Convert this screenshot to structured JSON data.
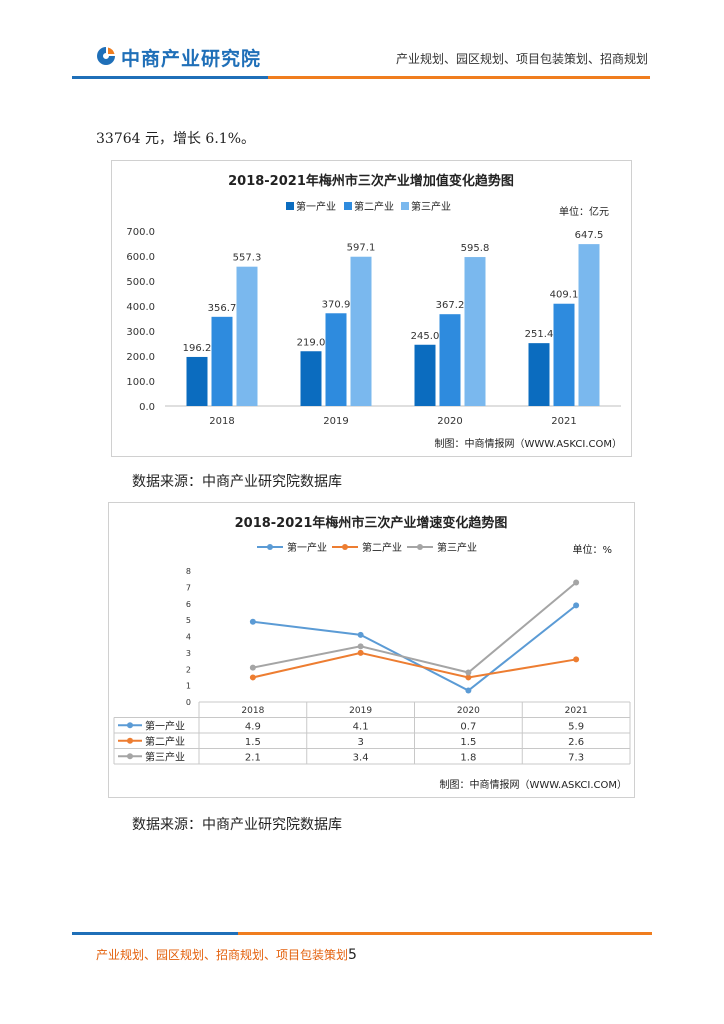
{
  "header": {
    "logo_text": "中商产业研究院",
    "tagline": "产业规划、园区规划、项目包装策划、招商规划"
  },
  "body": {
    "intro_text": "33764 元，增长 6.1%。",
    "source_1": "数据来源：中商产业研究院数据库",
    "source_2": "数据来源：中商产业研究院数据库"
  },
  "footer": {
    "text": "产业规划、园区规划、招商规划、项目包装策划",
    "page_number": "5"
  },
  "colors": {
    "brand_blue": "#1f6fb8",
    "brand_orange": "#f07d1e",
    "primary_series": "#0b6cbf",
    "secondary_series": "#2e8bde",
    "tertiary_series": "#7ab8ee",
    "line_primary": "#5b9bd5",
    "line_secondary": "#ed7d31",
    "line_tertiary": "#a5a5a5"
  },
  "chart_data": [
    {
      "type": "bar",
      "title": "2018-2021年梅州市三次产业增加值变化趋势图",
      "unit_label": "单位：亿元",
      "credit": "制图：中商情报网（WWW.ASKCI.COM）",
      "legend_position": "top",
      "categories": [
        "2018",
        "2019",
        "2020",
        "2021"
      ],
      "series": [
        {
          "name": "第一产业",
          "values": [
            196.2,
            219.0,
            245.0,
            251.4
          ],
          "labels": [
            "196.2",
            "219.0",
            "245.0",
            "251.4"
          ]
        },
        {
          "name": "第二产业",
          "values": [
            356.7,
            370.9,
            367.2,
            409.1
          ],
          "labels": [
            "356.7",
            "370.9",
            "367.2",
            "409.1"
          ]
        },
        {
          "name": "第三产业",
          "values": [
            557.3,
            597.1,
            595.8,
            647.5
          ],
          "labels": [
            "557.3",
            "597.1",
            "595.8",
            "647.5"
          ]
        }
      ],
      "ylim": [
        0,
        700
      ],
      "yticks": [
        "0.0",
        "100.0",
        "200.0",
        "300.0",
        "400.0",
        "500.0",
        "600.0",
        "700.0"
      ],
      "grid": false
    },
    {
      "type": "line",
      "title": "2018-2021年梅州市三次产业增速变化趋势图",
      "unit_label": "单位：%",
      "credit": "制图：中商情报网（WWW.ASKCI.COM）",
      "legend_position": "top",
      "categories": [
        "2018",
        "2019",
        "2020",
        "2021"
      ],
      "series": [
        {
          "name": "第一产业",
          "values": [
            4.9,
            4.1,
            0.7,
            5.9
          ],
          "labels": [
            "4.9",
            "4.1",
            "0.7",
            "5.9"
          ]
        },
        {
          "name": "第二产业",
          "values": [
            1.5,
            3,
            1.5,
            2.6
          ],
          "labels": [
            "1.5",
            "3",
            "1.5",
            "2.6"
          ]
        },
        {
          "name": "第三产业",
          "values": [
            2.1,
            3.4,
            1.8,
            7.3
          ],
          "labels": [
            "2.1",
            "3.4",
            "1.8",
            "7.3"
          ]
        }
      ],
      "ylim": [
        0,
        8
      ],
      "yticks": [
        "0",
        "1",
        "2",
        "3",
        "4",
        "5",
        "6",
        "7",
        "8"
      ],
      "grid": false,
      "data_table": true
    }
  ]
}
